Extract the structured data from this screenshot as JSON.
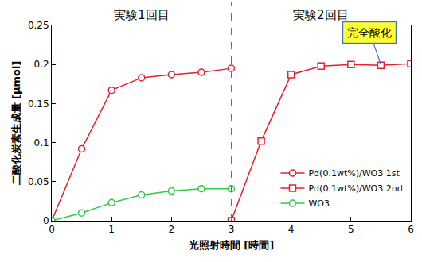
{
  "chart_data": {
    "type": "line",
    "x_label": "光照射時間 [時間]",
    "y_label": "二酸化炭素生成量 [μmol]",
    "series": [
      {
        "name": "Pd(0.1wt%)/WO3 1st",
        "color": "#e8212b",
        "marker": "circle",
        "x": [
          0,
          0.5,
          1,
          1.5,
          2,
          2.5,
          3
        ],
        "values": [
          0,
          0.092,
          0.167,
          0.183,
          0.187,
          0.19,
          0.195
        ]
      },
      {
        "name": "Pd(0.1wt%)/WO3 2nd",
        "color": "#e8212b",
        "marker": "square",
        "x": [
          3,
          3.5,
          4,
          4.5,
          5,
          5.5,
          6
        ],
        "values": [
          0,
          0.102,
          0.187,
          0.198,
          0.2,
          0.199,
          0.201
        ]
      },
      {
        "name": "WO3",
        "color": "#2ecc40",
        "marker": "circle",
        "x": [
          0,
          0.5,
          1,
          1.5,
          2,
          2.5,
          3
        ],
        "values": [
          0,
          0.01,
          0.023,
          0.033,
          0.038,
          0.041,
          0.041
        ]
      }
    ],
    "xlim": [
      0,
      6
    ],
    "xticks": [
      0,
      1,
      2,
      3,
      4,
      5,
      6
    ],
    "ylim": [
      0,
      0.25
    ],
    "yticks": [
      0,
      0.05,
      0.1,
      0.15,
      0.2,
      0.25
    ],
    "grid": false,
    "legend": "lower right",
    "vlines": [
      {
        "x": 3,
        "color": "#4472c4",
        "line_style": "dash"
      }
    ],
    "annotations": [
      {
        "text": "実験1回目",
        "x": 1.5
      },
      {
        "text": "実験2回目",
        "x": 4.5
      },
      {
        "text": "完全酸化",
        "x": 5.5,
        "y": 0.2
      }
    ]
  }
}
